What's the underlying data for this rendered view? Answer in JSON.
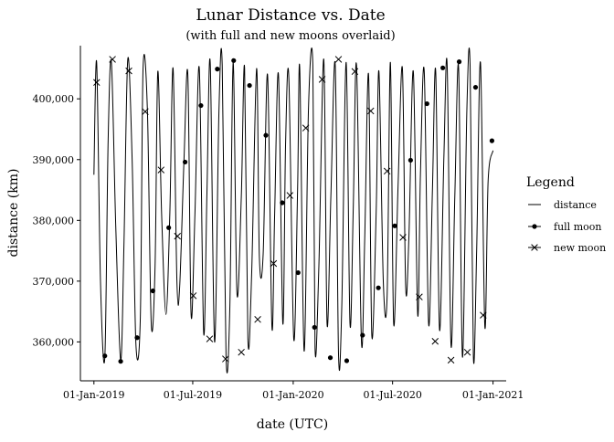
{
  "chart_data": {
    "type": "line",
    "title": "Lunar Distance vs. Date",
    "subtitle": "(with full and new moons overlaid)",
    "xlabel": "date (UTC)",
    "ylabel": "distance (km)",
    "xlim": [
      "2018-12-29",
      "2021-01-05"
    ],
    "ylim": [
      354500,
      408000
    ],
    "x_ticks": [
      "2019-01-01",
      "2019-07-01",
      "2020-01-01",
      "2020-07-01",
      "2021-01-01"
    ],
    "x_tick_labels": [
      "01-Jan-2019",
      "01-Jul-2019",
      "01-Jan-2020",
      "01-Jul-2020",
      "01-Jan-2021"
    ],
    "y_ticks": [
      360000,
      370000,
      380000,
      390000,
      400000
    ],
    "y_tick_labels": [
      "360,000",
      "370,000",
      "380,000",
      "390,000",
      "400,000"
    ],
    "grid": false,
    "legend": {
      "title": "Legend",
      "placement": "right",
      "entries": [
        {
          "label": "distance",
          "marker": "line"
        },
        {
          "label": "full moon",
          "marker": "dot"
        },
        {
          "label": "new moon",
          "marker": "cross"
        }
      ]
    },
    "series": [
      {
        "name": "distance",
        "kind": "line",
        "x": [
          "2019-01-01",
          "2019-01-06",
          "2019-01-13",
          "2019-01-21",
          "2019-01-27",
          "2019-02-02",
          "2019-02-10",
          "2019-02-19",
          "2019-02-25",
          "2019-03-04",
          "2019-03-12",
          "2019-03-19",
          "2019-03-27",
          "2019-04-01",
          "2019-04-09",
          "2019-04-16",
          "2019-04-23",
          "2019-04-28",
          "2019-05-05",
          "2019-05-13",
          "2019-05-20",
          "2019-05-26",
          "2019-06-02",
          "2019-06-07",
          "2019-06-15",
          "2019-06-22",
          "2019-06-28",
          "2019-07-05",
          "2019-07-13",
          "2019-07-21",
          "2019-07-27",
          "2019-08-02",
          "2019-08-10",
          "2019-08-18",
          "2019-08-24",
          "2019-08-31",
          "2019-09-07",
          "2019-09-13",
          "2019-09-20",
          "2019-09-28",
          "2019-10-04",
          "2019-10-10",
          "2019-10-17",
          "2019-10-26",
          "2019-10-31",
          "2019-11-07",
          "2019-11-15",
          "2019-11-23",
          "2019-11-28",
          "2019-12-05",
          "2019-12-13",
          "2019-12-18",
          "2019-12-24",
          "2020-01-02",
          "2020-01-09",
          "2020-01-13",
          "2020-01-21",
          "2020-01-29",
          "2020-02-06",
          "2020-02-10",
          "2020-02-17",
          "2020-02-26",
          "2020-03-03",
          "2020-03-10",
          "2020-03-18",
          "2020-03-24",
          "2020-03-30",
          "2020-04-07",
          "2020-04-14",
          "2020-04-20",
          "2020-04-26",
          "2020-05-05",
          "2020-05-11",
          "2020-05-18",
          "2020-05-24",
          "2020-06-01",
          "2020-06-06",
          "2020-06-14",
          "2020-06-21",
          "2020-06-27",
          "2020-07-03",
          "2020-07-11",
          "2020-07-19",
          "2020-07-25",
          "2020-07-31",
          "2020-08-08",
          "2020-08-16",
          "2020-08-21",
          "2020-08-28",
          "2020-09-05",
          "2020-09-12",
          "2020-09-18",
          "2020-09-25",
          "2020-10-03",
          "2020-10-09",
          "2020-10-16",
          "2020-10-23",
          "2020-10-30",
          "2020-11-06",
          "2020-11-14",
          "2020-11-20",
          "2020-11-26",
          "2020-12-02",
          "2020-12-09",
          "2020-12-17",
          "2020-12-23",
          "2021-01-01"
        ],
        "y": [
          387500,
          406000,
          370000,
          357500,
          393000,
          406000,
          379000,
          357000,
          376000,
          406500,
          390000,
          359500,
          364000,
          405000,
          398000,
          363000,
          372500,
          404500,
          381000,
          364500,
          381000,
          405000,
          370000,
          369000,
          390000,
          404000,
          364500,
          381000,
          405000,
          361500,
          384500,
          406000,
          360000,
          398000,
          405500,
          357500,
          366000,
          406000,
          368000,
          384000,
          405000,
          360500,
          371500,
          405000,
          374000,
          374500,
          404000,
          362500,
          381000,
          404000,
          363000,
          392500,
          403500,
          360500,
          385000,
          405000,
          358500,
          398500,
          405500,
          359000,
          372500,
          406500,
          363000,
          384000,
          405500,
          358000,
          366000,
          406000,
          363000,
          382000,
          405500,
          360000,
          377000,
          404000,
          361000,
          381500,
          404500,
          370000,
          367500,
          406000,
          363000,
          385500,
          405000,
          369000,
          377500,
          404500,
          364500,
          387500,
          404500,
          363000,
          385000,
          404500,
          362000,
          390500,
          405500,
          359500,
          384000,
          405000,
          357500,
          398000,
          405500,
          357500,
          375000,
          406000,
          362500,
          386500,
          391500
        ]
      },
      {
        "name": "full moon",
        "kind": "points",
        "marker": "dot",
        "x": [
          "2019-01-21",
          "2019-02-19",
          "2019-03-21",
          "2019-04-19",
          "2019-05-18",
          "2019-06-17",
          "2019-07-16",
          "2019-08-15",
          "2019-09-14",
          "2019-10-13",
          "2019-11-12",
          "2019-12-12",
          "2020-01-10",
          "2020-02-09",
          "2020-03-09",
          "2020-04-08",
          "2020-05-07",
          "2020-06-05",
          "2020-07-05",
          "2020-08-03",
          "2020-09-02",
          "2020-10-01",
          "2020-10-31",
          "2020-11-30",
          "2020-12-30"
        ],
        "y": [
          357700,
          356800,
          360700,
          368400,
          378800,
          389600,
          398900,
          404900,
          406300,
          402200,
          394000,
          382900,
          371400,
          362400,
          357400,
          356900,
          361100,
          368900,
          379100,
          389900,
          399200,
          405100,
          406100,
          401900,
          393100
        ]
      },
      {
        "name": "new moon",
        "kind": "points",
        "marker": "cross",
        "x": [
          "2019-01-06",
          "2019-02-04",
          "2019-03-06",
          "2019-04-05",
          "2019-05-04",
          "2019-06-03",
          "2019-07-02",
          "2019-08-01",
          "2019-08-30",
          "2019-09-28",
          "2019-10-28",
          "2019-11-26",
          "2019-12-26",
          "2020-01-24",
          "2020-02-23",
          "2020-03-24",
          "2020-04-23",
          "2020-05-22",
          "2020-06-21",
          "2020-07-20",
          "2020-08-19",
          "2020-09-17",
          "2020-10-16",
          "2020-11-15",
          "2020-12-14"
        ],
        "y": [
          402700,
          406500,
          404600,
          397900,
          388300,
          377400,
          367600,
          360500,
          357200,
          358300,
          363700,
          372900,
          384100,
          395200,
          403200,
          406500,
          404500,
          398000,
          388100,
          377200,
          367400,
          360100,
          357000,
          358300,
          364400
        ]
      }
    ]
  }
}
